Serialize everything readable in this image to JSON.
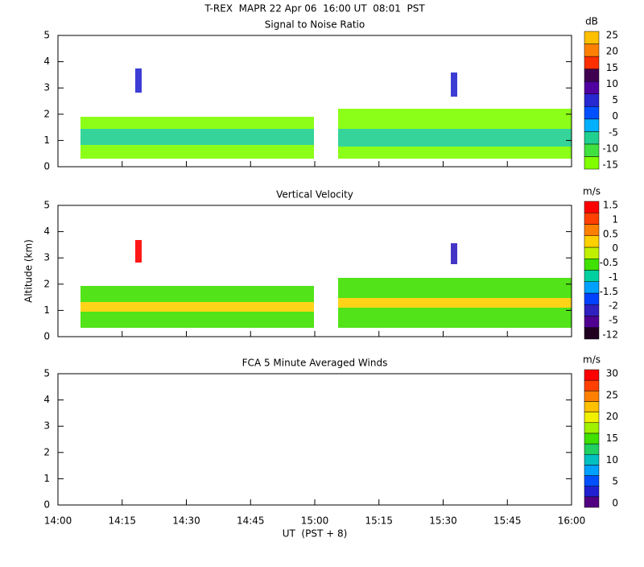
{
  "title": "T-REX  MAPR 22 Apr 06  16:00 UT  08:01  PST",
  "chart_data": [
    {
      "type": "heatmap",
      "title": "Signal to Noise Ratio",
      "ylim": [
        0,
        5
      ],
      "yticks": [
        0,
        1,
        2,
        3,
        4,
        5
      ],
      "colorbar": {
        "unit": "dB",
        "labels": [
          -15,
          -10,
          -5,
          0,
          5,
          10,
          15,
          20,
          25
        ],
        "colors": [
          "#80ff00",
          "#40e040",
          "#20d090",
          "#00b0ff",
          "#0050ff",
          "#2828d0",
          "#5000a0",
          "#400050",
          "#ff3000",
          "#ff8000",
          "#ffc000"
        ]
      }
    },
    {
      "type": "heatmap",
      "title": "Vertical Velocity",
      "ylabel": "Altitude (km)",
      "ylim": [
        0,
        5
      ],
      "yticks": [
        0,
        1,
        2,
        3,
        4,
        5
      ],
      "colorbar": {
        "unit": "m/s",
        "labels": [
          -12,
          -5,
          -2,
          -1.5,
          -1,
          -0.5,
          0,
          0.5,
          1,
          1.5
        ],
        "colors": [
          "#200020",
          "#500090",
          "#3020c0",
          "#0040ff",
          "#00a0ff",
          "#00d0a0",
          "#40e000",
          "#c0f000",
          "#ffd000",
          "#ff8000",
          "#ff4000",
          "#ff0000"
        ]
      }
    },
    {
      "type": "wind",
      "title": "FCA 5 Minute Averaged Winds",
      "xlabel": "UT  (PST + 8)",
      "ylim": [
        0,
        5
      ],
      "yticks": [
        0,
        1,
        2,
        3,
        4,
        5
      ],
      "xlim": [
        840,
        960
      ],
      "xticks": [
        {
          "value": 840,
          "label": "14:00"
        },
        {
          "value": 855,
          "label": "14:15"
        },
        {
          "value": 870,
          "label": "14:30"
        },
        {
          "value": 885,
          "label": "14:45"
        },
        {
          "value": 900,
          "label": "15:00"
        },
        {
          "value": 915,
          "label": "15:15"
        },
        {
          "value": 930,
          "label": "15:30"
        },
        {
          "value": 945,
          "label": "15:45"
        },
        {
          "value": 960,
          "label": "16:00"
        }
      ],
      "colorbar": {
        "unit": "m/s",
        "labels": [
          0,
          5,
          10,
          15,
          20,
          25,
          30
        ],
        "colors": [
          "#500080",
          "#2020d0",
          "#0050ff",
          "#00a0ff",
          "#00c0c0",
          "#20d060",
          "#40e000",
          "#a0f000",
          "#f0f000",
          "#ffc000",
          "#ff8000",
          "#ff4000",
          "#ff0000"
        ]
      }
    }
  ]
}
